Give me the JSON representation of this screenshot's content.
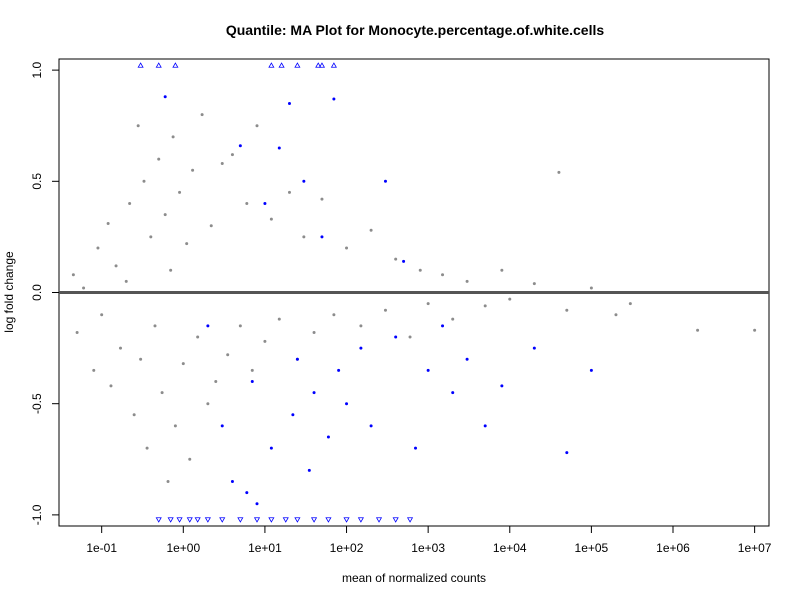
{
  "chart_data": {
    "type": "scatter",
    "title": "Quantile: MA Plot for Monocyte.percentage.of.white.cells",
    "xlabel": "mean of normalized counts",
    "ylabel": "log fold change",
    "x_scale": "log10",
    "xlim": [
      0.03,
      15000000
    ],
    "ylim": [
      -1.05,
      1.05
    ],
    "x_ticks": [
      {
        "value": 0.1,
        "label": "1e-01"
      },
      {
        "value": 1,
        "label": "1e+00"
      },
      {
        "value": 10,
        "label": "1e+01"
      },
      {
        "value": 100,
        "label": "1e+02"
      },
      {
        "value": 1000,
        "label": "1e+03"
      },
      {
        "value": 10000,
        "label": "1e+04"
      },
      {
        "value": 100000,
        "label": "1e+05"
      },
      {
        "value": 1000000,
        "label": "1e+06"
      },
      {
        "value": 10000000,
        "label": "1e+07"
      }
    ],
    "y_ticks": [
      {
        "value": -1.0,
        "label": "-1.0"
      },
      {
        "value": -0.5,
        "label": "-0.5"
      },
      {
        "value": 0.0,
        "label": "0.0"
      },
      {
        "value": 0.5,
        "label": "0.5"
      },
      {
        "value": 1.0,
        "label": "1.0"
      }
    ],
    "reference_line": {
      "y": 0,
      "color": "#555555"
    },
    "colors": {
      "not_significant": "#8c8c8c",
      "significant": "#0000ff"
    },
    "series": [
      {
        "points": [
          [
            0.045,
            0.08
          ],
          [
            0.05,
            -0.18
          ],
          [
            0.06,
            0.02
          ],
          [
            0.08,
            -0.35
          ],
          [
            0.09,
            0.2
          ],
          [
            0.1,
            -0.1
          ],
          [
            0.12,
            0.31
          ],
          [
            0.13,
            -0.42
          ],
          [
            0.15,
            0.12
          ],
          [
            0.17,
            -0.25
          ],
          [
            0.2,
            0.05
          ],
          [
            0.22,
            0.4
          ],
          [
            0.25,
            -0.55
          ],
          [
            0.28,
            0.75
          ],
          [
            0.3,
            -0.3
          ],
          [
            0.33,
            0.5
          ],
          [
            0.36,
            -0.7
          ],
          [
            0.4,
            0.25
          ],
          [
            0.45,
            -0.15
          ],
          [
            0.5,
            0.6
          ],
          [
            0.55,
            -0.45
          ],
          [
            0.6,
            0.35
          ],
          [
            0.65,
            -0.85
          ],
          [
            0.7,
            0.1
          ],
          [
            0.75,
            0.7
          ],
          [
            0.8,
            -0.6
          ],
          [
            0.9,
            0.45
          ],
          [
            1.0,
            -0.32
          ],
          [
            1.1,
            0.22
          ],
          [
            1.2,
            -0.75
          ],
          [
            1.3,
            0.55
          ],
          [
            1.5,
            -0.2
          ],
          [
            1.7,
            0.8
          ],
          [
            2.0,
            -0.5
          ],
          [
            2.2,
            0.3
          ],
          [
            2.5,
            -0.4
          ],
          [
            3.0,
            0.58
          ],
          [
            3.5,
            -0.28
          ],
          [
            4.0,
            0.62
          ],
          [
            5.0,
            -0.15
          ],
          [
            6.0,
            0.4
          ],
          [
            7.0,
            -0.35
          ],
          [
            8.0,
            0.75
          ],
          [
            10.0,
            -0.22
          ],
          [
            12.0,
            0.33
          ],
          [
            15.0,
            -0.12
          ],
          [
            20.0,
            0.45
          ],
          [
            25.0,
            -0.3
          ],
          [
            30.0,
            0.25
          ],
          [
            40.0,
            -0.18
          ],
          [
            50.0,
            0.42
          ],
          [
            70.0,
            -0.1
          ],
          [
            100.0,
            0.2
          ],
          [
            150.0,
            -0.15
          ],
          [
            200.0,
            0.28
          ],
          [
            300.0,
            -0.08
          ],
          [
            400.0,
            0.15
          ],
          [
            600.0,
            -0.2
          ],
          [
            800.0,
            0.1
          ],
          [
            1000.0,
            -0.05
          ],
          [
            1500.0,
            0.08
          ],
          [
            2000.0,
            -0.12
          ],
          [
            3000.0,
            0.05
          ],
          [
            5000.0,
            -0.06
          ],
          [
            8000.0,
            0.1
          ],
          [
            10000.0,
            -0.03
          ],
          [
            20000.0,
            0.04
          ],
          [
            40000.0,
            0.54
          ],
          [
            50000.0,
            -0.08
          ],
          [
            100000.0,
            0.02
          ],
          [
            200000.0,
            -0.1
          ],
          [
            300000.0,
            -0.05
          ],
          [
            2000000.0,
            -0.17
          ],
          [
            10000000.0,
            -0.17
          ]
        ],
        "color": "#8c8c8c"
      },
      {
        "points": [
          [
            0.6,
            0.88
          ],
          [
            2.0,
            -0.15
          ],
          [
            3.0,
            -0.6
          ],
          [
            4.0,
            -0.85
          ],
          [
            5.0,
            0.66
          ],
          [
            6.0,
            -0.9
          ],
          [
            7.0,
            -0.4
          ],
          [
            8.0,
            -0.95
          ],
          [
            10.0,
            0.4
          ],
          [
            12.0,
            -0.7
          ],
          [
            15.0,
            0.65
          ],
          [
            20.0,
            0.85
          ],
          [
            22.0,
            -0.55
          ],
          [
            25.0,
            -0.3
          ],
          [
            30.0,
            0.5
          ],
          [
            35.0,
            -0.8
          ],
          [
            40.0,
            -0.45
          ],
          [
            50.0,
            0.25
          ],
          [
            60.0,
            -0.65
          ],
          [
            70.0,
            0.87
          ],
          [
            80.0,
            -0.35
          ],
          [
            100.0,
            -0.5
          ],
          [
            150.0,
            -0.25
          ],
          [
            200.0,
            -0.6
          ],
          [
            300.0,
            0.5
          ],
          [
            400.0,
            -0.2
          ],
          [
            500.0,
            0.14
          ],
          [
            700.0,
            -0.7
          ],
          [
            1000.0,
            -0.35
          ],
          [
            1500.0,
            -0.15
          ],
          [
            2000.0,
            -0.45
          ],
          [
            3000.0,
            -0.3
          ],
          [
            5000.0,
            -0.6
          ],
          [
            8000.0,
            -0.42
          ],
          [
            20000.0,
            -0.25
          ],
          [
            50000.0,
            -0.72
          ],
          [
            100000.0,
            -0.35
          ]
        ],
        "color": "#0000ff"
      },
      {
        "points": [
          [
            0.3,
            1.02
          ],
          [
            0.5,
            1.02
          ],
          [
            0.8,
            1.02
          ],
          [
            12.0,
            1.02
          ],
          [
            16.0,
            1.02
          ],
          [
            25.0,
            1.02
          ],
          [
            45.0,
            1.02
          ],
          [
            50.0,
            1.02
          ],
          [
            70.0,
            1.02
          ],
          [
            0.5,
            -1.02
          ],
          [
            0.7,
            -1.02
          ],
          [
            0.9,
            -1.02
          ],
          [
            1.2,
            -1.02
          ],
          [
            1.5,
            -1.02
          ],
          [
            2.0,
            -1.02
          ],
          [
            3.0,
            -1.02
          ],
          [
            5.0,
            -1.02
          ],
          [
            8.0,
            -1.02
          ],
          [
            12.0,
            -1.02
          ],
          [
            18.0,
            -1.02
          ],
          [
            25.0,
            -1.02
          ],
          [
            40.0,
            -1.02
          ],
          [
            60.0,
            -1.02
          ],
          [
            100.0,
            -1.02
          ],
          [
            150.0,
            -1.02
          ],
          [
            250.0,
            -1.02
          ],
          [
            400.0,
            -1.02
          ],
          [
            600.0,
            -1.02
          ]
        ],
        "color": "#0000ff"
      }
    ]
  }
}
